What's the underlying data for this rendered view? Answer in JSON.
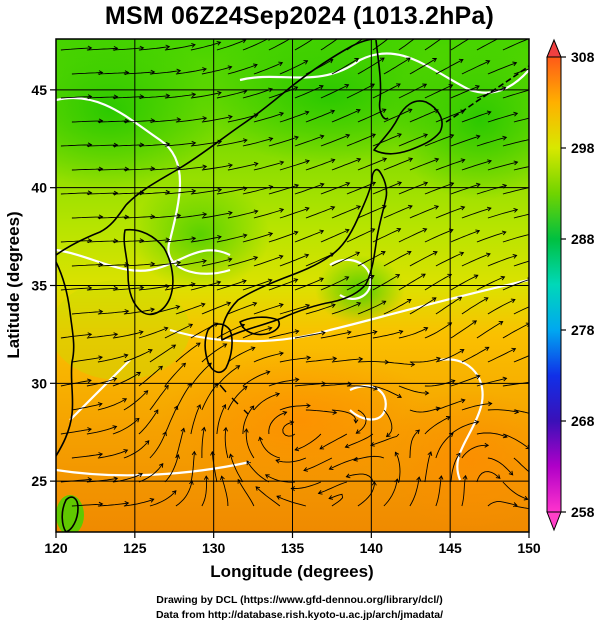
{
  "title": "MSM 06Z24Sep2024 (1013.2hPa)",
  "map": {
    "x_label": "Longitude (degrees)",
    "y_label": "Latitude  (degrees)",
    "lon_range": [
      120,
      150
    ],
    "lat_range": [
      22.4,
      47.6
    ],
    "lon_ticks": [
      120,
      125,
      130,
      135,
      140,
      145,
      150
    ],
    "lat_ticks": [
      25,
      30,
      35,
      40,
      45
    ],
    "grid": true,
    "field": "temperature (K) with wind streamlines",
    "contour_color": "#ffffff"
  },
  "colorbar": {
    "min": 258,
    "max": 308,
    "ticks": [
      308,
      298,
      288,
      278,
      268,
      258
    ],
    "colors": [
      "#ff33cc",
      "#b000c8",
      "#3a10b8",
      "#1030e8",
      "#00a8f0",
      "#00d8b8",
      "#00c040",
      "#70d400",
      "#d8e800",
      "#ffb000",
      "#ff5a18"
    ]
  },
  "footer": {
    "line1": "Drawing by DCL (https://www.gfd-dennou.org/library/dcl/)",
    "line2": "Data from http://database.rish.kyoto-u.ac.jp/arch/jmadata/"
  }
}
